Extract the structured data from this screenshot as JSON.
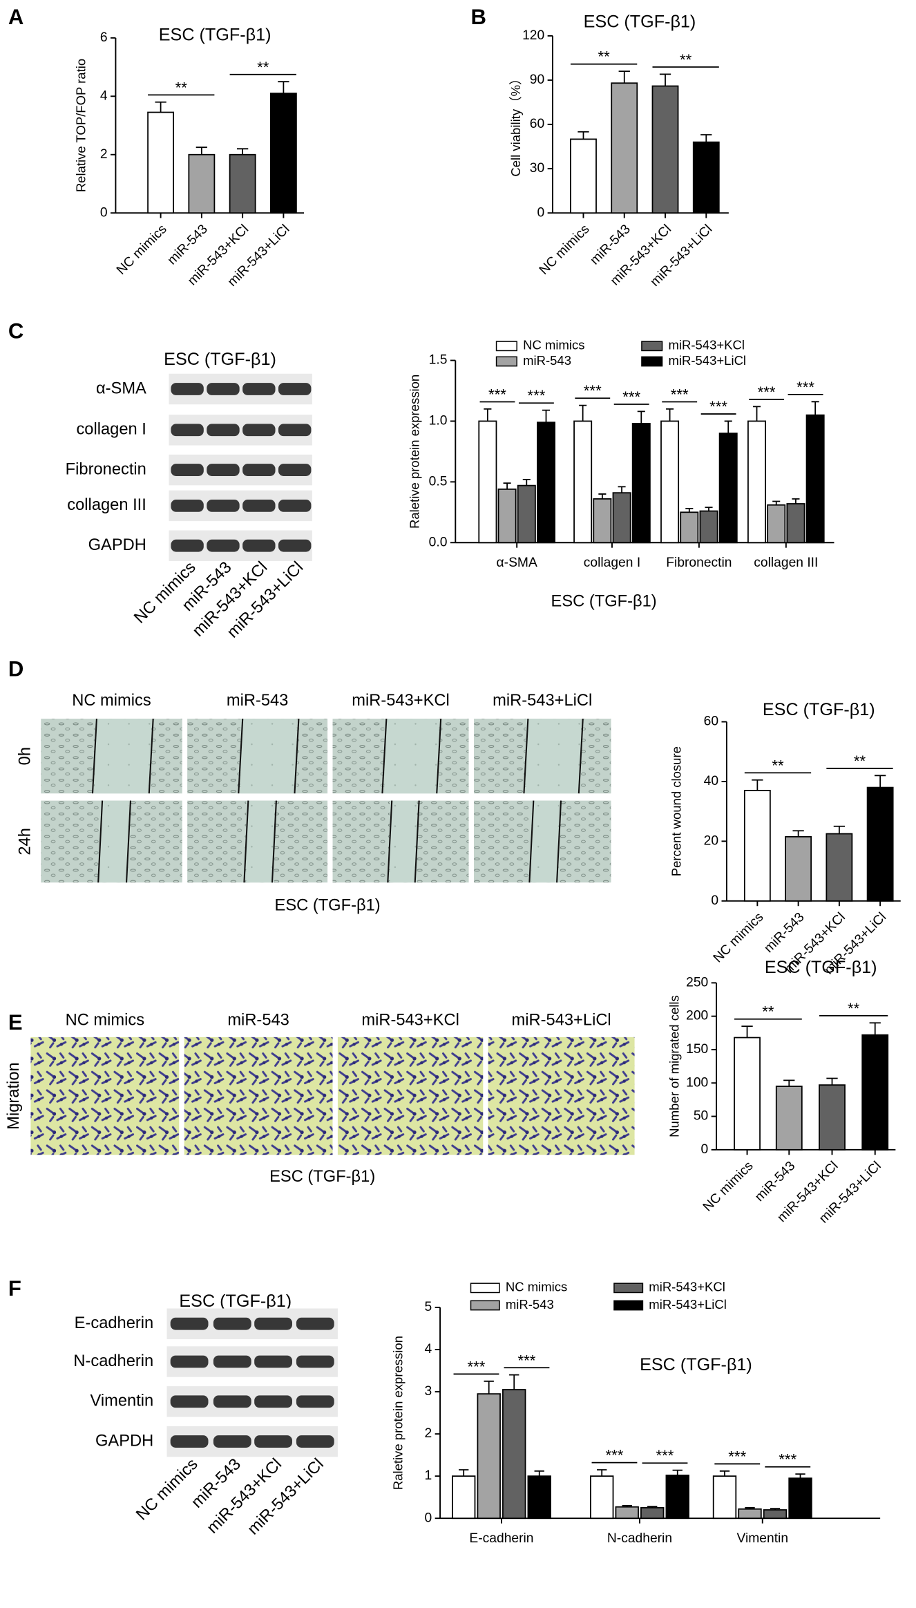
{
  "chart_data": [
    {
      "type": "bar",
      "panel": "A",
      "title": "ESC (TGF-β1)",
      "ylabel": "Relative TOP/FOP ratio",
      "categories": [
        "NC mimics",
        "miR-543",
        "miR-543+KCl",
        "miR-543+LiCl"
      ],
      "values": [
        3.45,
        2.0,
        2.0,
        4.1
      ],
      "errors": [
        0.35,
        0.25,
        0.2,
        0.4
      ],
      "colors": [
        "#ffffff",
        "#a3a3a3",
        "#626262",
        "#000000"
      ],
      "ylim": [
        0,
        6
      ],
      "yticks": [
        0,
        2,
        4,
        6
      ],
      "annotations": [
        {
          "text": "**",
          "pair": [
            0,
            1
          ]
        },
        {
          "text": "**",
          "pair": [
            2,
            3
          ]
        }
      ]
    },
    {
      "type": "bar",
      "panel": "B",
      "title": "ESC (TGF-β1)",
      "ylabel": "Cell viability（%）",
      "categories": [
        "NC mimics",
        "miR-543",
        "miR-543+KCl",
        "miR-543+LiCl"
      ],
      "values": [
        50,
        88,
        86,
        48
      ],
      "errors": [
        5,
        8,
        8,
        5
      ],
      "colors": [
        "#ffffff",
        "#a3a3a3",
        "#626262",
        "#000000"
      ],
      "ylim": [
        0,
        120
      ],
      "yticks": [
        0,
        30,
        60,
        90,
        120
      ],
      "annotations": [
        {
          "text": "**",
          "pair": [
            0,
            1
          ]
        },
        {
          "text": "**",
          "pair": [
            2,
            3
          ]
        }
      ]
    },
    {
      "type": "bar",
      "ylabel": "Raletive protein expression",
      "xlabel": "ESC (TGF-β1)",
      "categories": [
        "α-SMA",
        "collagen I",
        "Fibronectin",
        "collagen III"
      ],
      "series": [
        {
          "name": "NC mimics",
          "color": "#ffffff",
          "values": [
            1.0,
            1.0,
            1.0,
            1.0
          ],
          "errors": [
            0.1,
            0.13,
            0.1,
            0.12
          ]
        },
        {
          "name": "miR-543",
          "color": "#a3a3a3",
          "values": [
            0.44,
            0.36,
            0.25,
            0.31
          ],
          "errors": [
            0.05,
            0.04,
            0.03,
            0.03
          ]
        },
        {
          "name": "miR-543+KCl",
          "color": "#626262",
          "values": [
            0.47,
            0.41,
            0.26,
            0.32
          ],
          "errors": [
            0.05,
            0.05,
            0.03,
            0.04
          ]
        },
        {
          "name": "miR-543+LiCl",
          "color": "#000000",
          "values": [
            0.99,
            0.98,
            0.9,
            1.05
          ],
          "errors": [
            0.1,
            0.1,
            0.1,
            0.11
          ]
        }
      ],
      "ylim": [
        0,
        1.5
      ],
      "yticks": [
        {
          "value": 0,
          "label": "0.0"
        },
        {
          "value": 0.5,
          "label": "0.5"
        },
        {
          "value": 1,
          "label": "1.0"
        },
        {
          "value": 1.5,
          "label": "1.5"
        }
      ],
      "annotations": [
        {
          "text": "***",
          "category": 0,
          "pair": [
            0,
            1
          ]
        },
        {
          "text": "***",
          "category": 0,
          "pair": [
            2,
            3
          ]
        },
        {
          "text": "***",
          "category": 1,
          "pair": [
            0,
            1
          ]
        },
        {
          "text": "***",
          "category": 1,
          "pair": [
            2,
            3
          ]
        },
        {
          "text": "***",
          "category": 2,
          "pair": [
            0,
            1
          ]
        },
        {
          "text": "***",
          "category": 2,
          "pair": [
            2,
            3
          ]
        },
        {
          "text": "***",
          "category": 3,
          "pair": [
            0,
            1
          ]
        },
        {
          "text": "***",
          "category": 3,
          "pair": [
            2,
            3
          ]
        }
      ]
    },
    {
      "type": "bar",
      "title": "ESC (TGF-β1)",
      "ylabel": "Percent wound closure",
      "categories": [
        "NC mimics",
        "miR-543",
        "miR-543+KCl",
        "miR-543+LiCl"
      ],
      "values": [
        37,
        21.5,
        22.5,
        38
      ],
      "errors": [
        3.5,
        2,
        2.5,
        4
      ],
      "colors": [
        "#ffffff",
        "#a3a3a3",
        "#626262",
        "#000000"
      ],
      "ylim": [
        0,
        60
      ],
      "yticks": [
        0,
        20,
        40,
        60
      ],
      "annotations": [
        {
          "text": "**",
          "pair": [
            0,
            1
          ]
        },
        {
          "text": "**",
          "pair": [
            2,
            3
          ]
        }
      ]
    },
    {
      "type": "bar",
      "title": "ESC (TGF-β1)",
      "ylabel": "Number of migrated cells",
      "categories": [
        "NC mimics",
        "miR-543",
        "miR-543+KCl",
        "miR-543+LiCl"
      ],
      "values": [
        168,
        95,
        97,
        172
      ],
      "errors": [
        17,
        9,
        10,
        18
      ],
      "colors": [
        "#ffffff",
        "#a3a3a3",
        "#626262",
        "#000000"
      ],
      "ylim": [
        0,
        250
      ],
      "yticks": [
        0,
        50,
        100,
        150,
        200,
        250
      ],
      "annotations": [
        {
          "text": "**",
          "pair": [
            0,
            1
          ]
        },
        {
          "text": "**",
          "pair": [
            2,
            3
          ]
        }
      ]
    },
    {
      "type": "bar",
      "title": "ESC (TGF-β1)",
      "ylabel": "Raletive protein expression",
      "categories": [
        "E-cadherin",
        "N-cadherin",
        "Vimentin"
      ],
      "series": [
        {
          "name": "NC mimics",
          "color": "#ffffff",
          "values": [
            1.0,
            1.0,
            1.0
          ],
          "errors": [
            0.15,
            0.15,
            0.12
          ]
        },
        {
          "name": "miR-543",
          "color": "#a3a3a3",
          "values": [
            2.95,
            0.27,
            0.22
          ],
          "errors": [
            0.3,
            0.03,
            0.03
          ]
        },
        {
          "name": "miR-543+KCl",
          "color": "#626262",
          "values": [
            3.05,
            0.25,
            0.2
          ],
          "errors": [
            0.35,
            0.03,
            0.03
          ]
        },
        {
          "name": "miR-543+LiCl",
          "color": "#000000",
          "values": [
            1.0,
            1.02,
            0.95
          ],
          "errors": [
            0.12,
            0.12,
            0.1
          ]
        }
      ],
      "ylim": [
        0,
        5
      ],
      "yticks": [
        0,
        1,
        2,
        3,
        4,
        5
      ],
      "annotations": [
        {
          "text": "***",
          "category": 0,
          "pair": [
            0,
            1
          ]
        },
        {
          "text": "***",
          "category": 0,
          "pair": [
            2,
            3
          ]
        },
        {
          "text": "***",
          "category": 1,
          "pair": [
            0,
            1
          ]
        },
        {
          "text": "***",
          "category": 1,
          "pair": [
            2,
            3
          ]
        },
        {
          "text": "***",
          "category": 2,
          "pair": [
            0,
            1
          ]
        },
        {
          "text": "***",
          "category": 2,
          "pair": [
            2,
            3
          ]
        }
      ]
    }
  ],
  "blots": [
    {
      "panel": "C",
      "title": "ESC (TGF-β1)",
      "rows": [
        "α-SMA",
        "collagen I",
        "Fibronectin",
        "collagen III",
        "GAPDH"
      ],
      "lanes": [
        "NC mimics",
        "miR-543",
        "miR-543+KCl",
        "miR-543+LiCl"
      ]
    },
    {
      "panel": "F",
      "title": "ESC (TGF-β1)",
      "rows": [
        "E-cadherin",
        "N-cadherin",
        "Vimentin",
        "GAPDH"
      ],
      "lanes": [
        "NC mimics",
        "miR-543",
        "miR-543+KCl",
        "miR-543+LiCl"
      ]
    }
  ],
  "images": [
    {
      "panel": "D",
      "columns": [
        "NC mimics",
        "miR-543",
        "miR-543+KCl",
        "miR-543+LiCl"
      ],
      "rows": [
        "0h",
        "24h"
      ],
      "caption": "ESC (TGF-β1)"
    },
    {
      "panel": "E",
      "columns": [
        "NC mimics",
        "miR-543",
        "miR-543+KCl",
        "miR-543+LiCl"
      ],
      "rows": [
        "Migration"
      ],
      "caption": "ESC (TGF-β1)"
    }
  ]
}
